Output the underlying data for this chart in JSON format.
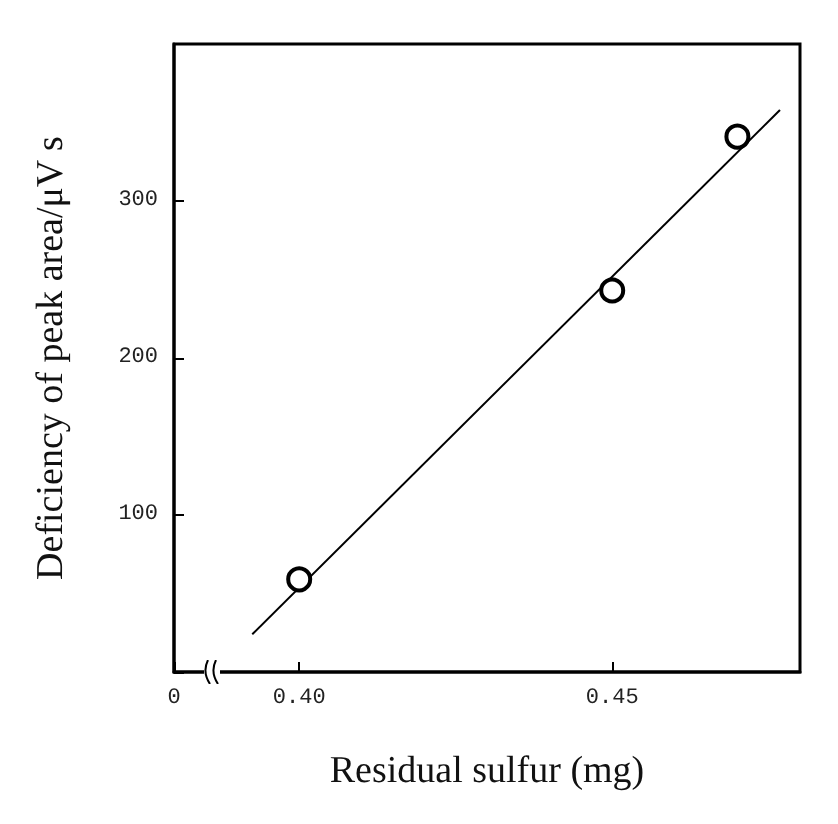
{
  "chart_data": {
    "type": "scatter",
    "xlabel": "Residual sulfur (mg)",
    "ylabel": "Deficiency of peak area/μV s",
    "xlim": [
      0.38,
      0.48
    ],
    "xticks": [
      {
        "value": 0.38,
        "label": "0"
      },
      {
        "value": 0.4,
        "label": "0.40"
      },
      0.45
    ],
    "ylim": [
      0,
      400
    ],
    "yticks": [
      {
        "value": 0,
        "label": null
      },
      100,
      200,
      300
    ],
    "grid": false,
    "marker": "circle",
    "series": [
      {
        "color": "#000000",
        "x": [
          0.4,
          0.45,
          0.47
        ],
        "values": [
          59,
          243,
          341
        ]
      },
      {
        "type": "line",
        "color": "#000000",
        "x": [
          0.3925,
          0.4768
        ],
        "values": [
          24,
          358
        ],
        "marker": "none",
        "line_style": "solid"
      }
    ]
  }
}
